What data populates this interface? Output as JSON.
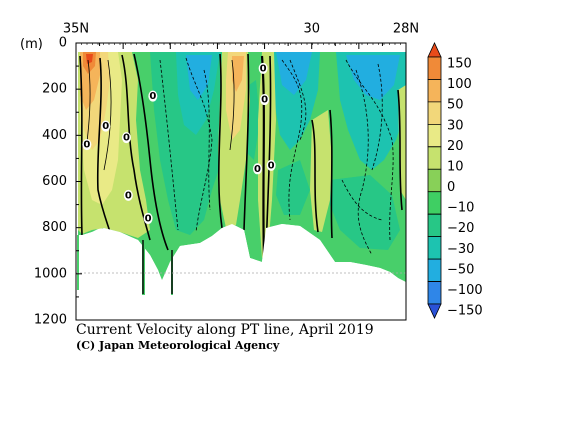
{
  "chart_data": {
    "type": "heatmap",
    "title": "Current Velocity along PT line, April 2019",
    "credit": "(C) Japan Meteorological Agency",
    "ylabel": "(m)",
    "x_tick_labels": [
      {
        "value": 35,
        "label": "35N"
      },
      {
        "value": 30,
        "label": "30"
      },
      {
        "value": 28,
        "label": "28N"
      }
    ],
    "xlim": [
      35,
      28
    ],
    "y_ticks": [
      0,
      200,
      400,
      600,
      800,
      1000,
      1200
    ],
    "ylim": [
      0,
      1200
    ],
    "colorbar": {
      "levels": [
        150,
        100,
        50,
        30,
        20,
        10,
        0,
        -10,
        -20,
        -30,
        -50,
        -100,
        -150
      ],
      "labels": [
        "150",
        "100",
        "50",
        "30",
        "20",
        "10",
        "0",
        "−10",
        "−20",
        "−30",
        "−50",
        "−100",
        "−150"
      ],
      "colors": [
        "#e84b1a",
        "#f08a38",
        "#f5b45a",
        "#f2d77a",
        "#e9ea86",
        "#c6e26e",
        "#88d058",
        "#3fcf63",
        "#27c786",
        "#1dc3b0",
        "#22aee0",
        "#2f86e8",
        "#2a52d8"
      ]
    },
    "contour_labels": [
      {
        "lat": 34.77,
        "depth": 440,
        "text": "0"
      },
      {
        "lat": 34.37,
        "depth": 360,
        "text": "0"
      },
      {
        "lat": 33.93,
        "depth": 410,
        "text": "0"
      },
      {
        "lat": 33.89,
        "depth": 660,
        "text": "0"
      },
      {
        "lat": 33.37,
        "depth": 230,
        "text": "0"
      },
      {
        "lat": 33.47,
        "depth": 760,
        "text": "0"
      },
      {
        "lat": 31.03,
        "depth": 110,
        "text": "0"
      },
      {
        "lat": 31.0,
        "depth": 245,
        "text": "0"
      },
      {
        "lat": 31.15,
        "depth": 545,
        "text": "0"
      },
      {
        "lat": 30.86,
        "depth": 530,
        "text": "0"
      }
    ]
  }
}
